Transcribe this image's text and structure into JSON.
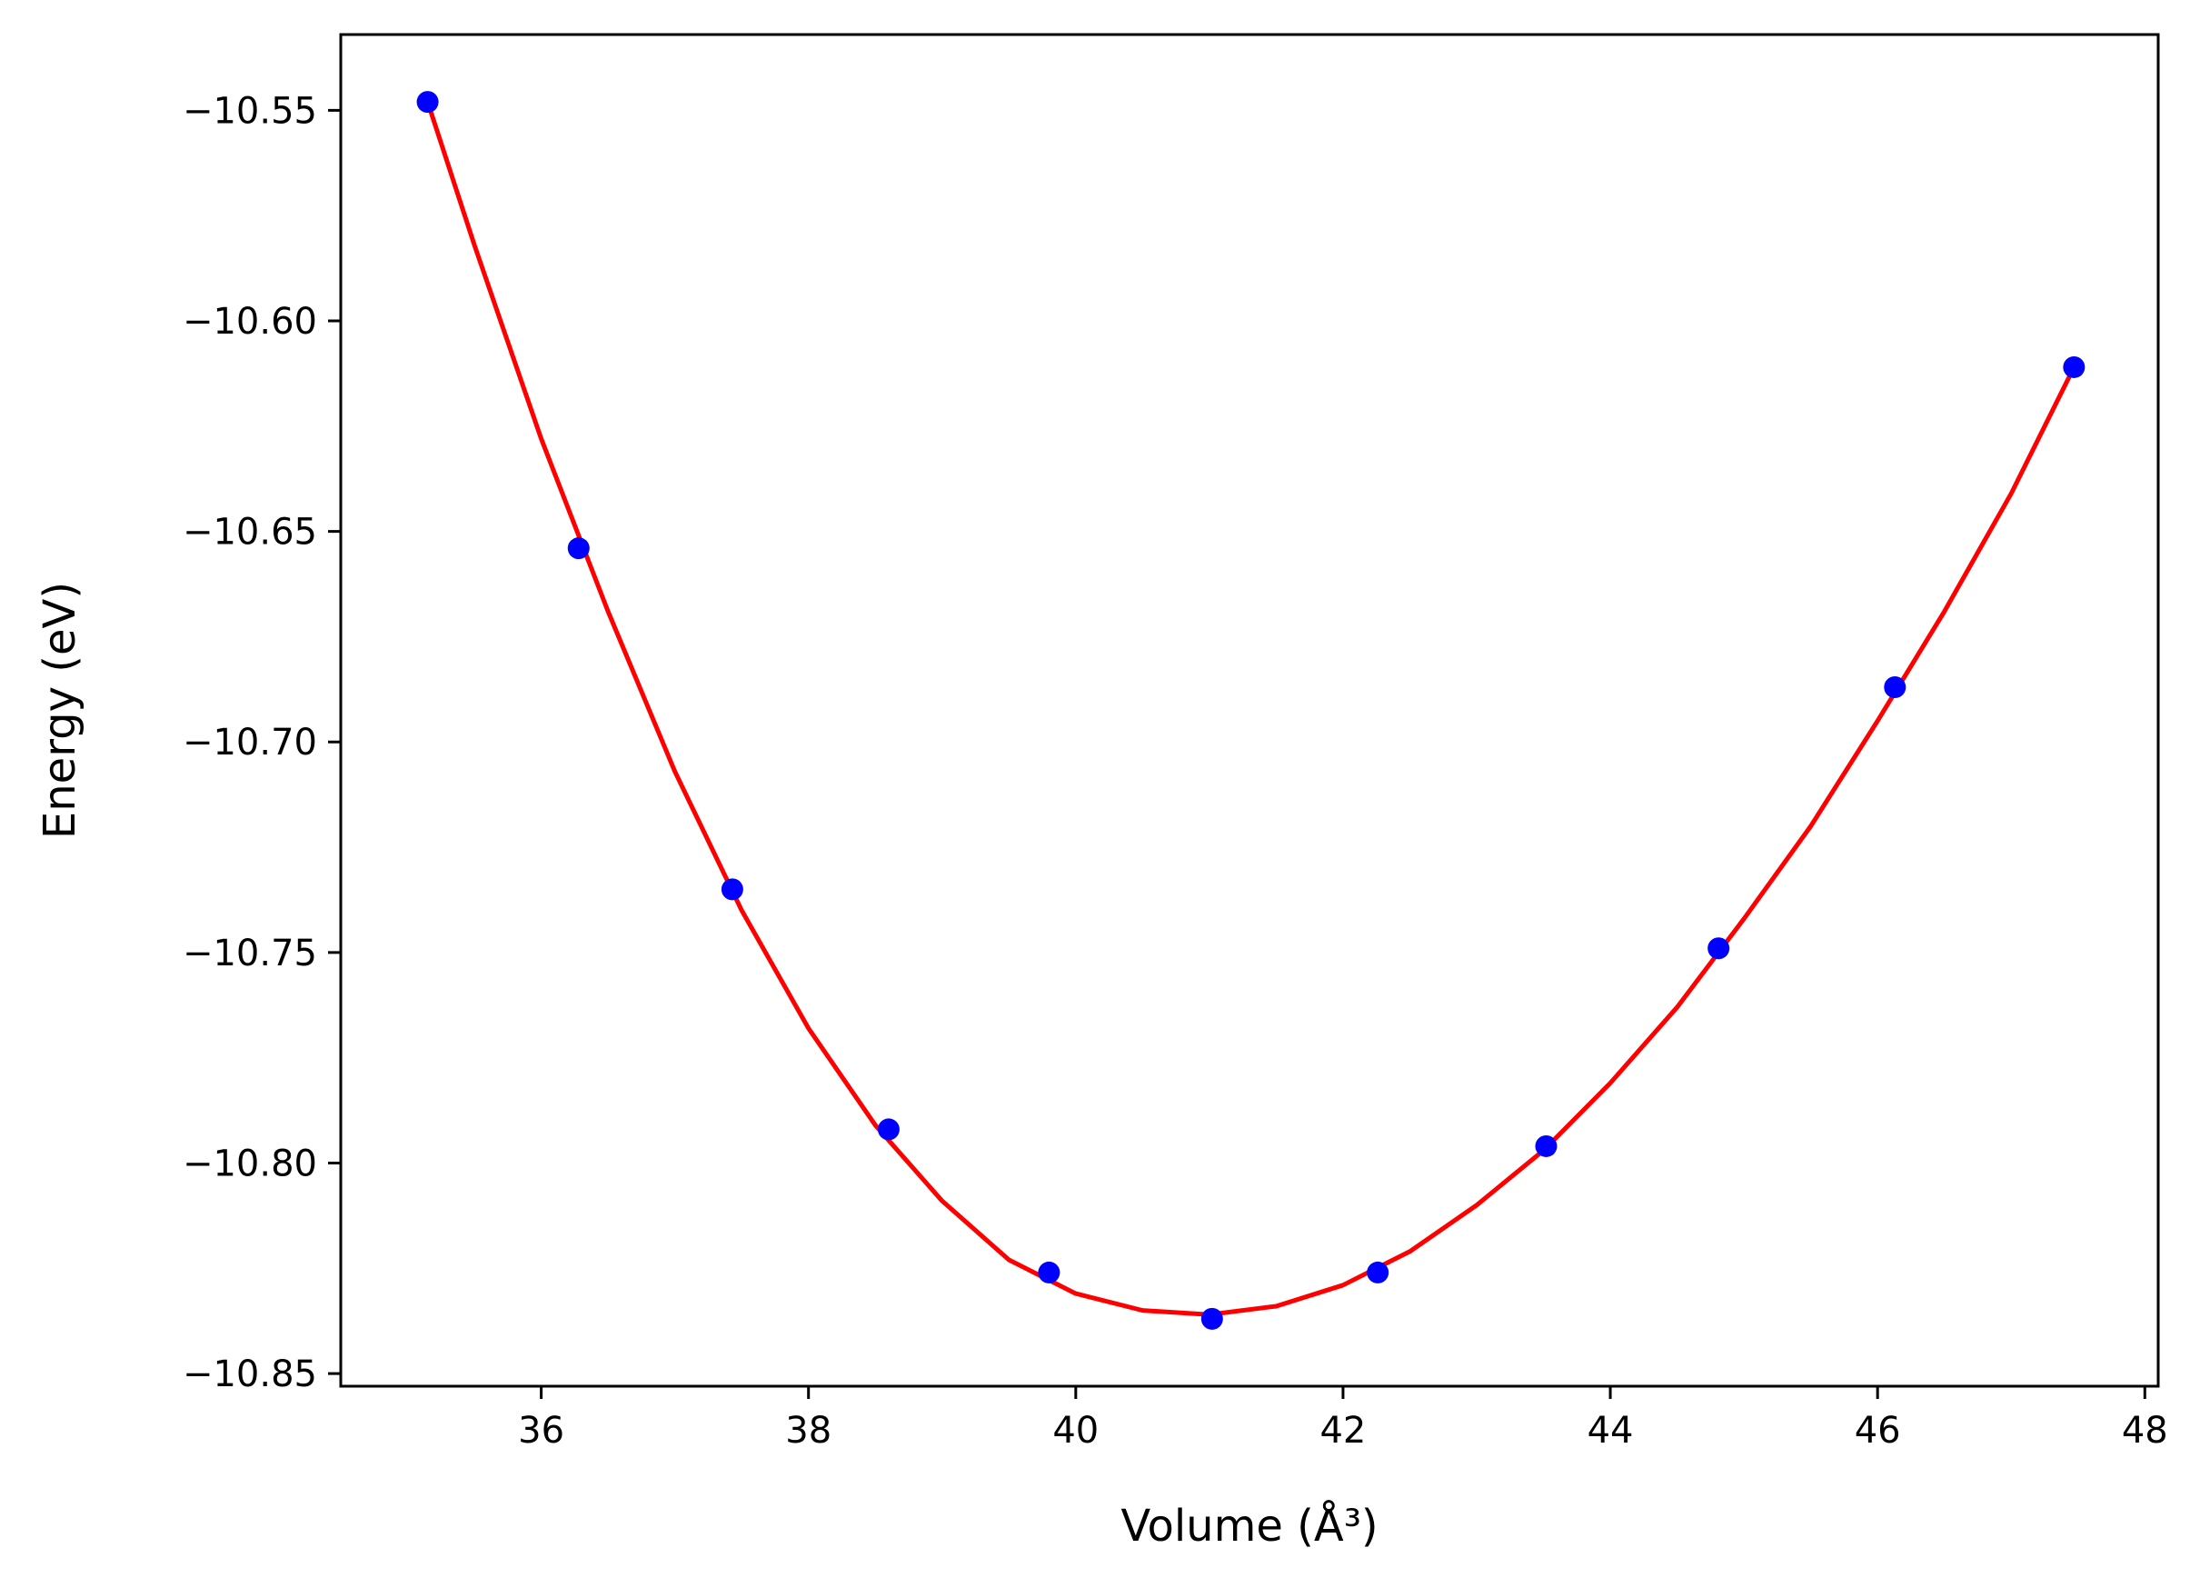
{
  "chart_data": {
    "type": "scatter",
    "xlabel": "Volume (Å³)",
    "ylabel": "Energy (eV)",
    "xlim": [
      34.5,
      48.1
    ],
    "ylim": [
      -10.853,
      -10.532
    ],
    "xticks": [
      36,
      38,
      40,
      42,
      44,
      46,
      48
    ],
    "yticks": [
      -10.55,
      -10.6,
      -10.65,
      -10.7,
      -10.75,
      -10.8,
      -10.85
    ],
    "xtick_labels": [
      "36",
      "38",
      "40",
      "42",
      "44",
      "46",
      "48"
    ],
    "ytick_labels": [
      "−10.55",
      "−10.60",
      "−10.65",
      "−10.70",
      "−10.75",
      "−10.80",
      "−10.85"
    ],
    "grid": false,
    "series": [
      {
        "kind": "points",
        "color": "#0000ff",
        "x": [
          35.15,
          36.28,
          37.43,
          38.6,
          39.8,
          41.02,
          42.26,
          43.52,
          44.81,
          46.13,
          47.47
        ],
        "y": [
          -10.548,
          -10.654,
          -10.735,
          -10.792,
          -10.826,
          -10.837,
          -10.826,
          -10.796,
          -10.749,
          -10.687,
          -10.611
        ]
      },
      {
        "kind": "fit-curve",
        "color": "#ff0000",
        "x": [
          35.15,
          35.5,
          36.0,
          36.5,
          37.0,
          37.5,
          38.0,
          38.5,
          39.0,
          39.5,
          40.0,
          40.5,
          41.0,
          41.5,
          42.0,
          42.5,
          43.0,
          43.5,
          44.0,
          44.5,
          45.0,
          45.5,
          46.0,
          46.5,
          47.0,
          47.47
        ],
        "y": [
          -10.548,
          -10.582,
          -10.628,
          -10.669,
          -10.707,
          -10.74,
          -10.768,
          -10.791,
          -10.809,
          -10.823,
          -10.831,
          -10.835,
          -10.836,
          -10.834,
          -10.829,
          -10.821,
          -10.81,
          -10.797,
          -10.781,
          -10.763,
          -10.742,
          -10.72,
          -10.695,
          -10.669,
          -10.641,
          -10.611
        ]
      }
    ]
  }
}
